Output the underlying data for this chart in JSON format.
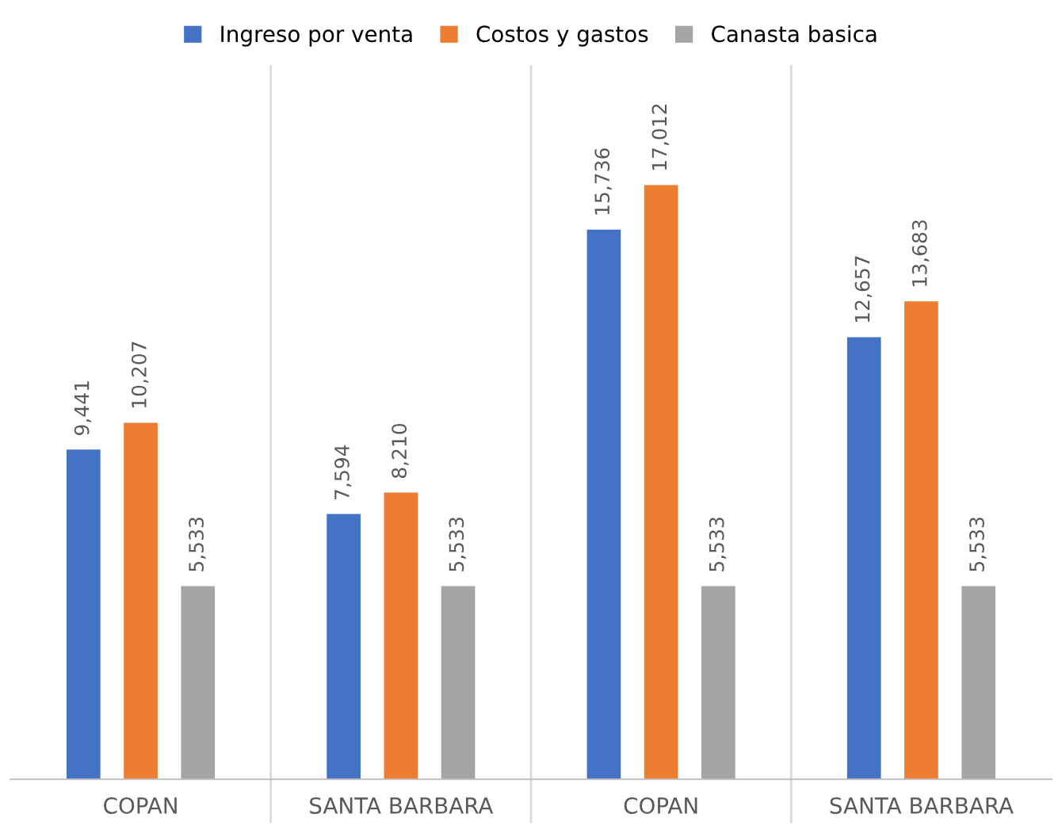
{
  "chart_data": {
    "type": "bar",
    "categories": [
      "COPAN",
      "SANTA BARBARA",
      "COPAN",
      "SANTA BARBARA"
    ],
    "series": [
      {
        "name": "Ingreso por venta",
        "color": "#4472c4",
        "values": [
          9441,
          7594,
          15736,
          12657
        ],
        "value_labels": [
          "9,441",
          "7,594",
          "15,736",
          "12,657"
        ]
      },
      {
        "name": "Costos y gastos",
        "color": "#ed7d31",
        "values": [
          10207,
          8210,
          17012,
          13683
        ],
        "value_labels": [
          "10,207",
          "8,210",
          "17,012",
          "13,683"
        ]
      },
      {
        "name": "Canasta basica",
        "color": "#a5a5a5",
        "values": [
          5533,
          5533,
          5533,
          5533
        ],
        "value_labels": [
          "5,533",
          "5,533",
          "5,533",
          "5,533"
        ]
      }
    ],
    "grid": "x",
    "legend": "top",
    "tick_labels": "x"
  }
}
